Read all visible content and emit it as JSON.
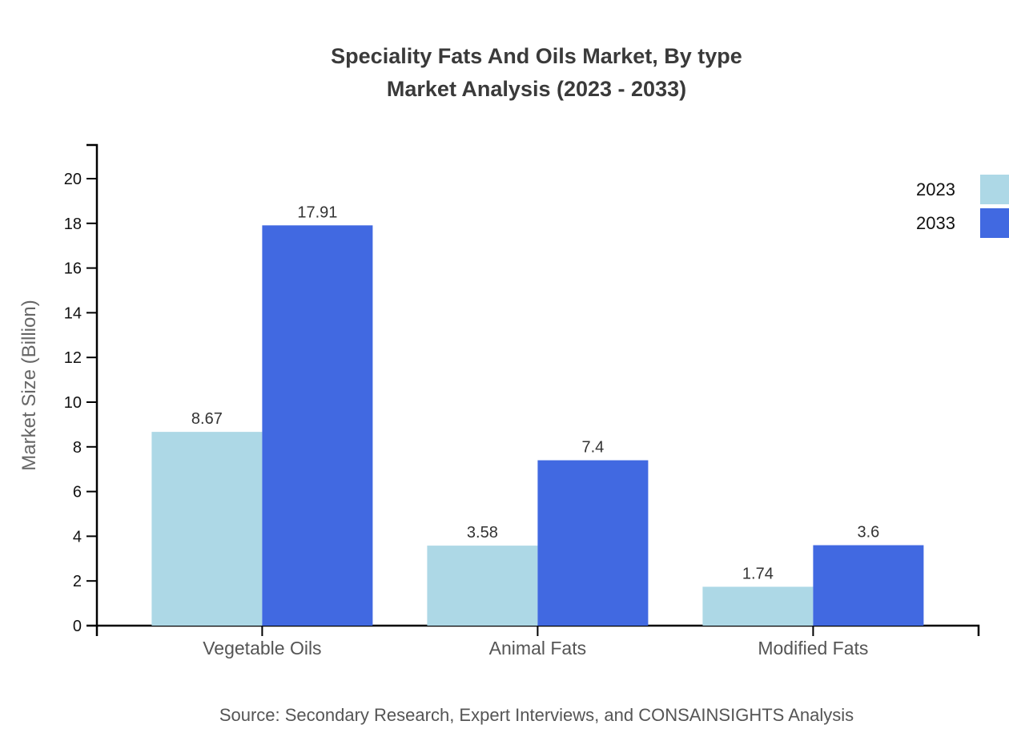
{
  "title": {
    "line1": "Speciality Fats And Oils Market, By type",
    "line2": "Market Analysis (2023 - 2033)"
  },
  "source": "Source: Secondary Research, Expert Interviews, and CONSAINSIGHTS Analysis",
  "colors": {
    "series_2023": "#ADD8E6",
    "series_2033": "#4169E1",
    "axis": "#000000",
    "tick_label": "#111111",
    "category_label": "#555555",
    "value_label": "#333333",
    "title_text": "#3a3a3a",
    "source_text": "#555555",
    "y_axis_title_text": "#666666"
  },
  "chart_data": {
    "type": "bar",
    "categories": [
      "Vegetable Oils",
      "Animal Fats",
      "Modified Fats"
    ],
    "series": [
      {
        "name": "2023",
        "color": "#ADD8E6",
        "values": [
          8.67,
          3.58,
          1.74
        ]
      },
      {
        "name": "2033",
        "color": "#4169E1",
        "values": [
          17.91,
          7.4,
          3.6
        ]
      }
    ],
    "title": "Speciality Fats And Oils Market, By type Market Analysis (2023 - 2033)",
    "xlabel": "",
    "ylabel": "Market Size (Billion)",
    "ylim": [
      0,
      20
    ],
    "yticks": [
      0,
      2,
      4,
      6,
      8,
      10,
      12,
      14,
      16,
      18,
      20
    ],
    "ytick_step": 2,
    "grid": false,
    "legend_position": "top-right",
    "value_labels_shown": true
  }
}
